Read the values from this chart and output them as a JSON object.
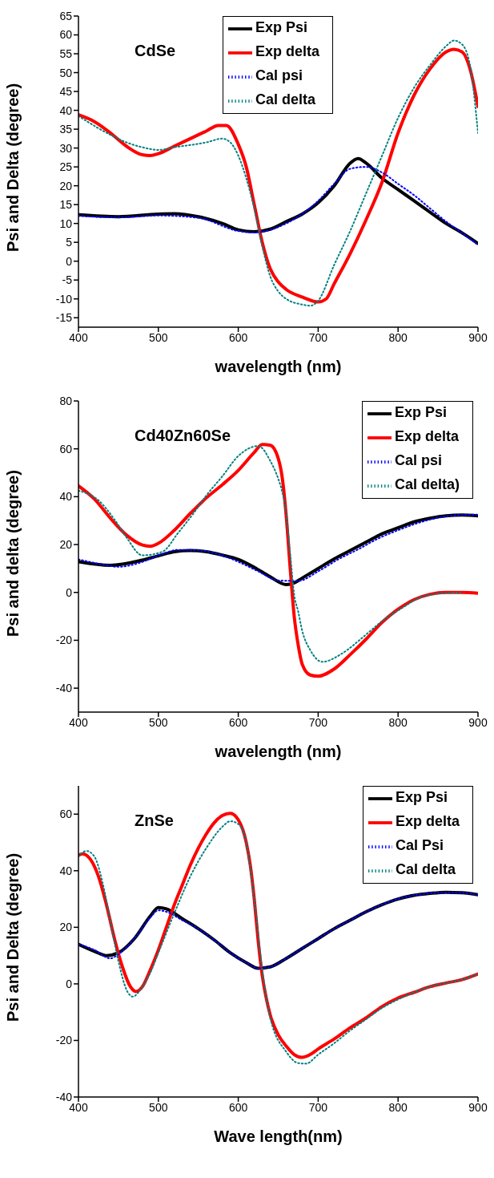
{
  "chart_data": [
    {
      "type": "line",
      "title": "CdSe",
      "xlabel": "wavelength (nm)",
      "ylabel": "Psi and Delta (degree)",
      "xlim": [
        400,
        900
      ],
      "xticks": [
        400,
        500,
        600,
        700,
        800,
        900
      ],
      "ylim": [
        -17.5,
        65
      ],
      "yticks": [
        -15,
        -10,
        -5,
        0,
        5,
        10,
        15,
        20,
        25,
        30,
        35,
        40,
        45,
        50,
        55,
        60,
        65
      ],
      "grid": false,
      "legend": "top",
      "series": [
        {
          "name": "Exp Psi",
          "color": "#000000",
          "line_style": "solid",
          "x": [
            400,
            450,
            500,
            520,
            550,
            580,
            600,
            620,
            640,
            660,
            680,
            700,
            720,
            740,
            750,
            760,
            780,
            800,
            820,
            840,
            860,
            880,
            900
          ],
          "values": [
            12.3,
            11.8,
            12.5,
            12.6,
            11.8,
            10,
            8.3,
            7.8,
            8.5,
            10.5,
            12.5,
            15.5,
            20,
            26,
            27.2,
            26,
            22,
            19,
            16,
            13,
            10,
            7.5,
            4.7
          ]
        },
        {
          "name": "Exp delta",
          "color": "#ff0000",
          "line_style": "solid",
          "x": [
            400,
            420,
            440,
            460,
            480,
            490,
            500,
            520,
            540,
            560,
            575,
            585,
            600,
            610,
            620,
            630,
            640,
            650,
            660,
            680,
            700,
            710,
            720,
            740,
            760,
            780,
            800,
            820,
            840,
            860,
            870,
            880,
            890,
            900
          ],
          "values": [
            38.8,
            37,
            34,
            30.5,
            28.2,
            28,
            28.5,
            30.5,
            32.5,
            34.5,
            36,
            36,
            31,
            25,
            15,
            5,
            -2,
            -5.5,
            -7.5,
            -9.5,
            -10.8,
            -10,
            -6,
            2,
            11,
            21,
            34,
            44,
            51,
            55.5,
            56.2,
            55.5,
            51,
            41
          ]
        },
        {
          "name": "Cal psi",
          "color": "#0000ff",
          "line_style": "dotted",
          "x": [
            400,
            450,
            500,
            550,
            600,
            620,
            640,
            660,
            680,
            700,
            720,
            740,
            760,
            780,
            800,
            820,
            840,
            860,
            880,
            900
          ],
          "values": [
            12,
            11.6,
            12.1,
            11.5,
            8,
            7.6,
            8.3,
            10,
            12.5,
            16,
            20.5,
            24.5,
            25,
            23.5,
            20.5,
            17.5,
            14,
            10.5,
            7.5,
            4.3
          ]
        },
        {
          "name": "Cal delta",
          "color": "#008080",
          "line_style": "dotted",
          "x": [
            400,
            440,
            460,
            480,
            500,
            520,
            560,
            580,
            590,
            600,
            610,
            620,
            630,
            640,
            650,
            660,
            680,
            690,
            700,
            720,
            740,
            760,
            780,
            800,
            820,
            840,
            860,
            870,
            880,
            890,
            900
          ],
          "values": [
            38.5,
            33.5,
            31.5,
            30.2,
            29.5,
            30.2,
            31.5,
            32.5,
            31.5,
            28,
            22,
            14,
            4,
            -4,
            -8,
            -10,
            -11.5,
            -11.8,
            -10.5,
            -1,
            8,
            18,
            28,
            38,
            46,
            52,
            57,
            58.5,
            57.5,
            52,
            34
          ]
        }
      ]
    },
    {
      "type": "line",
      "title": "Cd40Zn60Se",
      "xlabel": "wavelength (nm)",
      "ylabel": "Psi and delta (degree)",
      "xlim": [
        400,
        900
      ],
      "xticks": [
        400,
        500,
        600,
        700,
        800,
        900
      ],
      "ylim": [
        -50,
        80
      ],
      "yticks": [
        -40,
        -20,
        0,
        20,
        40,
        60,
        80
      ],
      "grid": false,
      "legend": "top right",
      "series": [
        {
          "name": "Exp Psi",
          "color": "#000000",
          "line_style": "solid",
          "x": [
            400,
            440,
            480,
            500,
            520,
            540,
            560,
            580,
            600,
            620,
            640,
            660,
            670,
            680,
            700,
            720,
            740,
            760,
            780,
            800,
            820,
            840,
            860,
            880,
            900
          ],
          "values": [
            12.8,
            11.3,
            13.5,
            15.3,
            17,
            17.5,
            17,
            15.6,
            13.8,
            10.5,
            6.5,
            3.3,
            4,
            6,
            10,
            14,
            17.5,
            21,
            24.5,
            27,
            29.5,
            31,
            32,
            32.3,
            32
          ]
        },
        {
          "name": "Exp delta",
          "color": "#ff0000",
          "line_style": "solid",
          "x": [
            400,
            420,
            440,
            460,
            480,
            490,
            500,
            520,
            540,
            560,
            580,
            600,
            620,
            630,
            640,
            650,
            655,
            660,
            665,
            670,
            675,
            680,
            690,
            700,
            720,
            740,
            760,
            780,
            800,
            820,
            840,
            860,
            880,
            900
          ],
          "values": [
            44.5,
            39,
            31,
            24,
            19.8,
            19.3,
            20.5,
            26,
            33,
            39.5,
            45,
            51,
            58.5,
            61.8,
            61.5,
            56,
            48,
            32,
            10,
            -10,
            -22,
            -30,
            -34.5,
            -35,
            -32,
            -26,
            -19.5,
            -12.5,
            -7,
            -3,
            -0.8,
            0,
            0,
            -0.3
          ]
        },
        {
          "name": "Cal psi",
          "color": "#0000ff",
          "line_style": "dotted",
          "x": [
            400,
            425,
            450,
            475,
            500,
            525,
            550,
            575,
            600,
            625,
            650,
            675,
            700,
            725,
            750,
            775,
            800,
            825,
            850,
            875,
            900
          ],
          "values": [
            13.8,
            12,
            10.7,
            12.2,
            15.4,
            17.8,
            17.6,
            16,
            12.8,
            8.8,
            5,
            4.8,
            8.8,
            13.8,
            18,
            22.5,
            26,
            29,
            31.2,
            32.3,
            32.5
          ]
        },
        {
          "name": "Cal delta)",
          "color": "#008080",
          "line_style": "dotted",
          "x": [
            400,
            425,
            445,
            460,
            480,
            505,
            525,
            545,
            560,
            580,
            600,
            625,
            640,
            650,
            655,
            660,
            665,
            670,
            675,
            680,
            690,
            705,
            730,
            755,
            780,
            805,
            825,
            850,
            880
          ],
          "values": [
            42.5,
            38.5,
            30.5,
            23,
            15.5,
            17,
            25,
            33.5,
            40.5,
            48.5,
            57,
            61.2,
            55,
            47.5,
            42,
            33,
            16,
            -1,
            -8,
            -16,
            -24,
            -29,
            -25.5,
            -19,
            -12,
            -6.5,
            -2.5,
            -0.5,
            0
          ]
        }
      ]
    },
    {
      "type": "line",
      "title": "ZnSe",
      "xlabel": "Wave length(nm)",
      "ylabel": "Psi and Delta (degree)",
      "xlim": [
        400,
        900
      ],
      "xticks": [
        400,
        500,
        600,
        700,
        800,
        900
      ],
      "ylim": [
        -40,
        70
      ],
      "yticks": [
        -40,
        -20,
        0,
        20,
        40,
        60
      ],
      "grid": false,
      "legend": "top right",
      "series": [
        {
          "name": "Exp Psi",
          "color": "#000000",
          "line_style": "solid",
          "x": [
            400,
            420,
            435,
            450,
            470,
            490,
            500,
            510,
            530,
            550,
            570,
            590,
            610,
            625,
            640,
            660,
            680,
            700,
            720,
            740,
            760,
            780,
            800,
            820,
            840,
            860,
            880,
            900
          ],
          "values": [
            14,
            11.5,
            10,
            11,
            16,
            24,
            27,
            26.5,
            23,
            19.5,
            15.5,
            11,
            7.5,
            5.5,
            6,
            9,
            12.5,
            16,
            19.5,
            22.5,
            25.5,
            28,
            30,
            31.3,
            32,
            32.4,
            32.2,
            31.5
          ]
        },
        {
          "name": "Exp delta",
          "color": "#ff0000",
          "line_style": "solid",
          "x": [
            400,
            405,
            415,
            425,
            435,
            445,
            455,
            465,
            472,
            480,
            490,
            500,
            510,
            520,
            530,
            540,
            550,
            560,
            570,
            580,
            590,
            600,
            610,
            615,
            620,
            625,
            630,
            635,
            640,
            650,
            660,
            670,
            680,
            690,
            700,
            720,
            740,
            760,
            780,
            800,
            820,
            840,
            860,
            880,
            900
          ],
          "values": [
            45.5,
            46,
            44,
            38,
            28,
            16,
            6,
            -1,
            -2.7,
            -1,
            5,
            12,
            20,
            28,
            35,
            42,
            48,
            53,
            57,
            59.5,
            60.3,
            58,
            50,
            42,
            30,
            15,
            3,
            -5,
            -11,
            -18,
            -22,
            -25,
            -26,
            -25,
            -23,
            -19.5,
            -15.5,
            -12,
            -8,
            -5,
            -3,
            -1,
            0.3,
            1.5,
            3.5
          ]
        },
        {
          "name": "Cal Psi",
          "color": "#0000ff",
          "line_style": "dotted",
          "x": [
            400,
            420,
            440,
            450,
            470,
            490,
            500,
            510,
            530,
            550,
            570,
            590,
            610,
            625,
            640,
            660,
            680,
            700,
            720,
            740,
            760,
            780,
            800,
            820,
            840,
            860,
            880,
            900
          ],
          "values": [
            14,
            12,
            9,
            10.5,
            16,
            23.5,
            26,
            25.5,
            22.5,
            19.5,
            15.5,
            11,
            7.5,
            5.5,
            6,
            9,
            12.5,
            16,
            19.5,
            22.5,
            25.5,
            28,
            30,
            31.3,
            32,
            32.3,
            32.2,
            31.5
          ]
        },
        {
          "name": "Cal delta",
          "color": "#008080",
          "line_style": "dotted",
          "x": [
            400,
            410,
            420,
            430,
            440,
            450,
            460,
            468,
            480,
            490,
            500,
            520,
            540,
            560,
            580,
            590,
            600,
            610,
            620,
            630,
            640,
            660,
            675,
            685,
            700,
            720,
            740,
            760,
            780,
            800,
            820,
            840,
            860,
            880,
            900
          ],
          "values": [
            45,
            47,
            45,
            36,
            22,
            8,
            -2,
            -4.5,
            -1,
            4,
            11,
            25,
            38,
            48,
            55.5,
            57.5,
            56.5,
            50,
            30,
            5,
            -12,
            -24,
            -28,
            -28.2,
            -25,
            -21,
            -16.5,
            -12.5,
            -8.5,
            -5.5,
            -3,
            -1,
            0.3,
            1.5,
            3.5
          ]
        }
      ]
    }
  ]
}
